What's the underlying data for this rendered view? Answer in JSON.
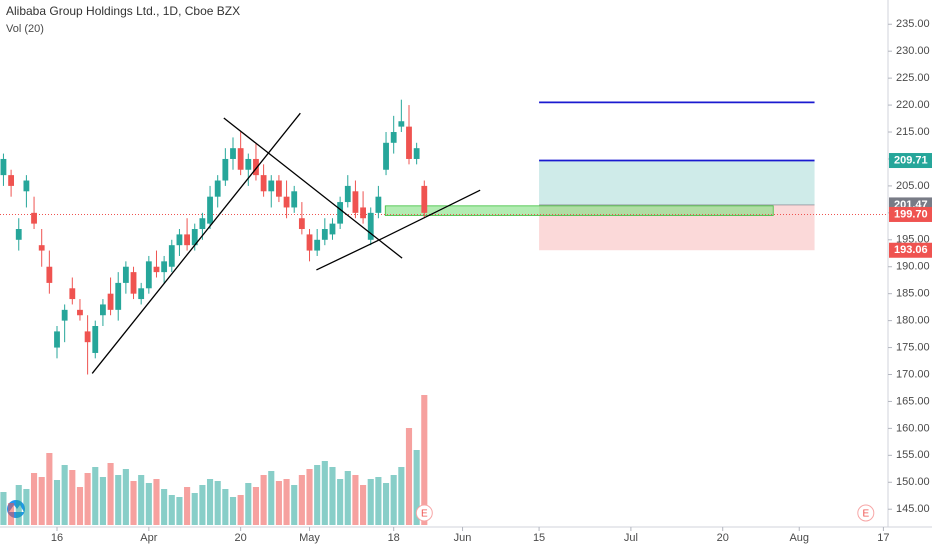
{
  "chart_data": {
    "type": "candlestick",
    "title": "Alibaba Group Holdings Ltd., 1D, Cboe BZX",
    "subtitle": "Vol (20)",
    "up_color": "#26a69a",
    "down_color": "#ef5350",
    "open": [
      207,
      207,
      195,
      204,
      200,
      194,
      190,
      175,
      180,
      186,
      182,
      178,
      174,
      181,
      185,
      182,
      187,
      189,
      184,
      186,
      190,
      189,
      190,
      194,
      196,
      194,
      197,
      198,
      203,
      206,
      210,
      212,
      208,
      210,
      207,
      204,
      206,
      203,
      201,
      199,
      196,
      193,
      195,
      196,
      198,
      202,
      204,
      201,
      195,
      200,
      208,
      213,
      216,
      216,
      210,
      205
    ],
    "high": [
      211,
      208,
      199,
      207,
      203,
      197,
      193,
      179,
      183,
      188,
      184,
      181,
      180,
      184,
      188,
      189,
      191,
      190,
      187,
      192,
      193,
      192,
      195,
      197,
      199,
      198,
      200,
      205,
      207,
      212,
      214,
      215,
      211,
      213,
      209,
      207,
      207,
      206,
      205,
      202,
      197,
      197,
      199,
      199,
      203,
      207,
      206,
      204,
      201,
      205,
      215,
      218,
      221,
      220,
      213,
      206
    ],
    "low": [
      205,
      203,
      193,
      201,
      197,
      190,
      185,
      173,
      176,
      183,
      180,
      170,
      173,
      179,
      181,
      180,
      185,
      184,
      183,
      185,
      188,
      187,
      189,
      192,
      193,
      193,
      195,
      197,
      201,
      205,
      208,
      207,
      205,
      206,
      203,
      201,
      202,
      199,
      200,
      196,
      191,
      192,
      194,
      195,
      197,
      201,
      199,
      198,
      194,
      199,
      207,
      211,
      215,
      209,
      209,
      199
    ],
    "close": [
      210,
      205,
      197,
      206,
      198,
      193,
      187,
      178,
      182,
      184,
      181,
      176,
      179,
      183,
      182,
      187,
      190,
      185,
      186,
      191,
      189,
      191,
      194,
      196,
      194,
      197,
      199,
      203,
      206,
      210,
      212,
      208,
      210,
      207,
      204,
      206,
      203,
      201,
      204,
      197,
      193,
      195,
      197,
      198,
      202,
      205,
      200,
      199,
      200,
      203,
      213,
      215,
      217,
      210,
      212,
      200
    ],
    "volume": [
      33,
      22,
      40,
      36,
      52,
      48,
      72,
      45,
      60,
      55,
      38,
      52,
      58,
      48,
      62,
      50,
      56,
      44,
      50,
      42,
      46,
      36,
      30,
      28,
      38,
      32,
      40,
      46,
      44,
      36,
      28,
      30,
      42,
      38,
      50,
      54,
      44,
      46,
      40,
      50,
      56,
      60,
      64,
      58,
      46,
      54,
      50,
      40,
      46,
      48,
      42,
      50,
      58,
      97,
      75,
      130
    ],
    "xlim": [
      -0.45,
      115.6
    ],
    "xticks": [
      {
        "value": 7,
        "label": "16"
      },
      {
        "value": 19,
        "label": "Apr"
      },
      {
        "value": 31,
        "label": "20"
      },
      {
        "value": 40,
        "label": "May"
      },
      {
        "value": 51,
        "label": "18"
      },
      {
        "value": 60,
        "label": "Jun"
      },
      {
        "value": 70,
        "label": "15"
      },
      {
        "value": 82,
        "label": "Jul"
      },
      {
        "value": 94,
        "label": "20"
      },
      {
        "value": 104,
        "label": "Aug"
      },
      {
        "value": 115,
        "label": "17"
      }
    ],
    "ylim": [
      141.7,
      239.5
    ],
    "yticks": [
      {
        "value": 145,
        "label": "145.00"
      },
      {
        "value": 150,
        "label": "150.00"
      },
      {
        "value": 155,
        "label": "155.00"
      },
      {
        "value": 160,
        "label": "160.00"
      },
      {
        "value": 165,
        "label": "165.00"
      },
      {
        "value": 170,
        "label": "170.00"
      },
      {
        "value": 175,
        "label": "175.00"
      },
      {
        "value": 180,
        "label": "180.00"
      },
      {
        "value": 185,
        "label": "185.00"
      },
      {
        "value": 190,
        "label": "190.00"
      },
      {
        "value": 195,
        "label": "195.00"
      },
      {
        "value": 200,
        "label": "200.00"
      },
      {
        "value": 205,
        "label": "205.00"
      },
      {
        "value": 210,
        "label": "210.00"
      },
      {
        "value": 215,
        "label": "215.00"
      },
      {
        "value": 220,
        "label": "220.00"
      },
      {
        "value": 225,
        "label": "225.00"
      },
      {
        "value": 230,
        "label": "230.00"
      },
      {
        "value": 235,
        "label": "235.00"
      }
    ],
    "last_price": {
      "value": 199.7,
      "label": "199.70",
      "color": "#ef5350"
    },
    "position": {
      "x": [
        70,
        106
      ],
      "entry": 201.47,
      "target": 209.71,
      "stop": 193.06,
      "entry_color": "#787b86",
      "target_color": "#26a69a",
      "stop_color": "#ef5350"
    },
    "drawings": [
      {
        "color": "#000000",
        "points": [
          [
            11.6,
            170.2
          ],
          [
            38.8,
            218.5
          ]
        ]
      },
      {
        "color": "#000000",
        "points": [
          [
            28.8,
            217.6
          ],
          [
            52.1,
            191.6
          ]
        ]
      },
      {
        "color": "#000000",
        "points": [
          [
            40.9,
            189.4
          ],
          [
            49,
            194.9
          ]
        ]
      },
      {
        "color": "#000000",
        "points": [
          [
            49,
            194.9
          ],
          [
            62.3,
            204.2
          ]
        ]
      },
      {
        "color": "#1a1ad0",
        "points": [
          [
            70,
            220.5
          ],
          [
            106,
            220.5
          ]
        ]
      },
      {
        "color": "#1a1ad0",
        "points": [
          [
            70,
            209.71
          ],
          [
            106,
            209.71
          ]
        ]
      }
    ],
    "zone": {
      "x": [
        49.9,
        100.6
      ],
      "y": [
        199.5,
        201.3
      ],
      "color": "#7ee07e"
    },
    "earnings_markers": [
      {
        "x": 55,
        "label": "E"
      },
      {
        "x": 112.7,
        "label": "E"
      }
    ]
  }
}
